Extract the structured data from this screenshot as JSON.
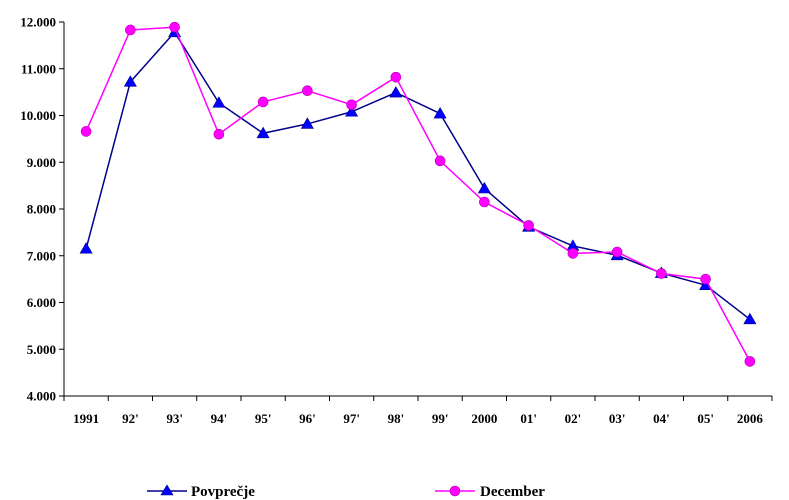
{
  "chart_data": {
    "type": "line",
    "categories": [
      "1991",
      "92'",
      "93'",
      "94'",
      "95'",
      "96'",
      "97'",
      "98'",
      "99'",
      "2000",
      "01'",
      "02'",
      "03'",
      "04'",
      "05'",
      "2006"
    ],
    "series": [
      {
        "name": "Povprečje",
        "color": "#00008B",
        "marker": "triangle",
        "values": [
          7150,
          10720,
          11780,
          10270,
          9620,
          9820,
          10080,
          10490,
          10040,
          8440,
          7620,
          7210,
          7010,
          6630,
          6370,
          5640
        ]
      },
      {
        "name": "December",
        "color": "#FF00FF",
        "marker": "circle",
        "values": [
          9660,
          11830,
          11890,
          9600,
          10290,
          10530,
          10230,
          10820,
          9030,
          8150,
          7650,
          7050,
          7080,
          6620,
          6500,
          4740
        ]
      }
    ],
    "ylim": [
      4000,
      12000
    ],
    "yticks": [
      "4.000",
      "5.000",
      "6.000",
      "7.000",
      "8.000",
      "9.000",
      "10.000",
      "11.000",
      "12.000"
    ],
    "title": "",
    "xlabel": "",
    "ylabel": "",
    "grid": false,
    "legend": "bottom"
  }
}
